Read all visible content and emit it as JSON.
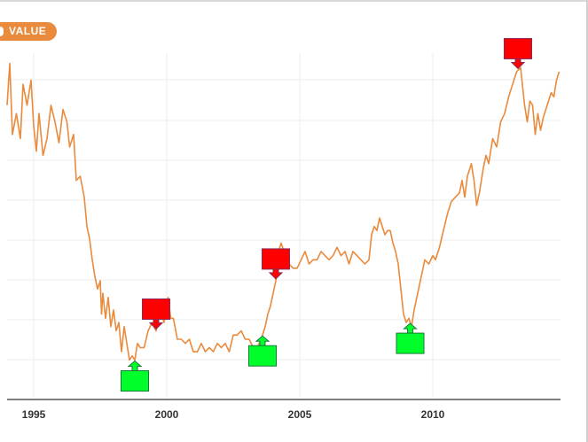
{
  "badge": {
    "label": "VALUE"
  },
  "colors": {
    "line": "#ea8a3c",
    "sell": "#ff0000",
    "buy": "#00ff2a",
    "grid": "#eeeeee",
    "axis": "#555555"
  },
  "chart_data": {
    "type": "line",
    "title": "",
    "xlabel": "",
    "ylabel": "",
    "xlim": [
      1994,
      2014.8
    ],
    "ylim": [
      0,
      85
    ],
    "grid": true,
    "x_ticks": [
      1995,
      2000,
      2005,
      2010
    ],
    "x_tick_labels": [
      "1995",
      "2000",
      "2005",
      "2010"
    ],
    "series": [
      {
        "values": [
          [
            1994.0,
            70
          ],
          [
            1994.1,
            80
          ],
          [
            1994.2,
            63
          ],
          [
            1994.35,
            68
          ],
          [
            1994.5,
            62
          ],
          [
            1994.6,
            75
          ],
          [
            1994.75,
            70
          ],
          [
            1994.9,
            76
          ],
          [
            1995.0,
            65
          ],
          [
            1995.1,
            59
          ],
          [
            1995.2,
            68
          ],
          [
            1995.35,
            58
          ],
          [
            1995.5,
            62
          ],
          [
            1995.65,
            70
          ],
          [
            1995.8,
            66
          ],
          [
            1995.95,
            61
          ],
          [
            1996.1,
            69
          ],
          [
            1996.25,
            66
          ],
          [
            1996.35,
            60
          ],
          [
            1996.5,
            63
          ],
          [
            1996.6,
            52
          ],
          [
            1996.75,
            53
          ],
          [
            1996.9,
            48
          ],
          [
            1997.0,
            41
          ],
          [
            1997.1,
            38
          ],
          [
            1997.2,
            33
          ],
          [
            1997.3,
            29
          ],
          [
            1997.4,
            26
          ],
          [
            1997.5,
            28
          ],
          [
            1997.55,
            20
          ],
          [
            1997.6,
            25
          ],
          [
            1997.7,
            19
          ],
          [
            1997.8,
            24
          ],
          [
            1997.9,
            17
          ],
          [
            1998.0,
            21
          ],
          [
            1998.1,
            16
          ],
          [
            1998.2,
            18
          ],
          [
            1998.3,
            11
          ],
          [
            1998.4,
            17
          ],
          [
            1998.5,
            13
          ],
          [
            1998.6,
            9
          ],
          [
            1998.7,
            10
          ],
          [
            1998.8,
            9
          ],
          [
            1998.9,
            13
          ],
          [
            1999.0,
            12
          ],
          [
            1999.15,
            12
          ],
          [
            1999.3,
            16
          ],
          [
            1999.45,
            18
          ],
          [
            1999.6,
            16
          ],
          [
            1999.75,
            21
          ],
          [
            1999.9,
            18
          ],
          [
            2000.05,
            24
          ],
          [
            2000.15,
            19
          ],
          [
            2000.25,
            19
          ],
          [
            2000.4,
            14
          ],
          [
            2000.55,
            14
          ],
          [
            2000.7,
            13
          ],
          [
            2000.85,
            14
          ],
          [
            2001.0,
            11
          ],
          [
            2001.15,
            11
          ],
          [
            2001.3,
            13
          ],
          [
            2001.45,
            11
          ],
          [
            2001.6,
            12
          ],
          [
            2001.75,
            11
          ],
          [
            2001.9,
            13
          ],
          [
            2002.05,
            12
          ],
          [
            2002.2,
            13
          ],
          [
            2002.35,
            11
          ],
          [
            2002.5,
            15
          ],
          [
            2002.65,
            15
          ],
          [
            2002.8,
            16
          ],
          [
            2002.95,
            14
          ],
          [
            2003.1,
            14
          ],
          [
            2003.25,
            12
          ],
          [
            2003.4,
            12
          ],
          [
            2003.55,
            14
          ],
          [
            2003.7,
            17
          ],
          [
            2003.8,
            20
          ],
          [
            2003.9,
            22
          ],
          [
            2004.0,
            25
          ],
          [
            2004.1,
            28
          ],
          [
            2004.2,
            35
          ],
          [
            2004.3,
            37
          ],
          [
            2004.45,
            34
          ],
          [
            2004.6,
            32
          ],
          [
            2004.75,
            31
          ],
          [
            2004.9,
            31
          ],
          [
            2005.05,
            33
          ],
          [
            2005.2,
            35
          ],
          [
            2005.35,
            32
          ],
          [
            2005.5,
            33
          ],
          [
            2005.65,
            33
          ],
          [
            2005.8,
            35
          ],
          [
            2005.95,
            34
          ],
          [
            2006.1,
            33
          ],
          [
            2006.25,
            34
          ],
          [
            2006.4,
            36
          ],
          [
            2006.55,
            34
          ],
          [
            2006.7,
            35
          ],
          [
            2006.85,
            32
          ],
          [
            2007.0,
            35
          ],
          [
            2007.15,
            34
          ],
          [
            2007.3,
            33
          ],
          [
            2007.45,
            32
          ],
          [
            2007.6,
            33
          ],
          [
            2007.7,
            39
          ],
          [
            2007.8,
            41
          ],
          [
            2007.9,
            40
          ],
          [
            2008.0,
            43
          ],
          [
            2008.1,
            41
          ],
          [
            2008.2,
            39
          ],
          [
            2008.3,
            40
          ],
          [
            2008.4,
            40
          ],
          [
            2008.5,
            37
          ],
          [
            2008.6,
            35
          ],
          [
            2008.7,
            32
          ],
          [
            2008.8,
            26
          ],
          [
            2008.9,
            20
          ],
          [
            2009.0,
            18
          ],
          [
            2009.1,
            19
          ],
          [
            2009.2,
            17
          ],
          [
            2009.3,
            21
          ],
          [
            2009.4,
            24
          ],
          [
            2009.5,
            27
          ],
          [
            2009.6,
            30
          ],
          [
            2009.7,
            33
          ],
          [
            2009.85,
            32
          ],
          [
            2010.0,
            34
          ],
          [
            2010.1,
            33
          ],
          [
            2010.25,
            36
          ],
          [
            2010.4,
            40
          ],
          [
            2010.55,
            44
          ],
          [
            2010.7,
            47
          ],
          [
            2010.85,
            48
          ],
          [
            2011.0,
            49
          ],
          [
            2011.1,
            52
          ],
          [
            2011.2,
            48
          ],
          [
            2011.3,
            53
          ],
          [
            2011.45,
            56
          ],
          [
            2011.55,
            52
          ],
          [
            2011.65,
            46
          ],
          [
            2011.75,
            49
          ],
          [
            2011.9,
            55
          ],
          [
            2012.0,
            58
          ],
          [
            2012.1,
            56
          ],
          [
            2012.25,
            62
          ],
          [
            2012.4,
            60
          ],
          [
            2012.55,
            66
          ],
          [
            2012.7,
            68
          ],
          [
            2012.85,
            72
          ],
          [
            2013.0,
            75
          ],
          [
            2013.15,
            78
          ],
          [
            2013.3,
            79
          ],
          [
            2013.45,
            70
          ],
          [
            2013.55,
            66
          ],
          [
            2013.65,
            71
          ],
          [
            2013.75,
            70
          ],
          [
            2013.85,
            63
          ],
          [
            2013.95,
            68
          ],
          [
            2014.05,
            64
          ],
          [
            2014.15,
            67
          ],
          [
            2014.3,
            70
          ],
          [
            2014.45,
            73
          ],
          [
            2014.55,
            72
          ],
          [
            2014.65,
            76
          ],
          [
            2014.75,
            78
          ]
        ]
      }
    ],
    "signals": [
      {
        "type": "buy",
        "x": 1998.8
      },
      {
        "type": "sell",
        "x": 1999.6
      },
      {
        "type": "buy",
        "x": 2003.6
      },
      {
        "type": "sell",
        "x": 2004.1
      },
      {
        "type": "buy",
        "x": 2009.15
      },
      {
        "type": "sell",
        "x": 2013.2
      }
    ]
  }
}
